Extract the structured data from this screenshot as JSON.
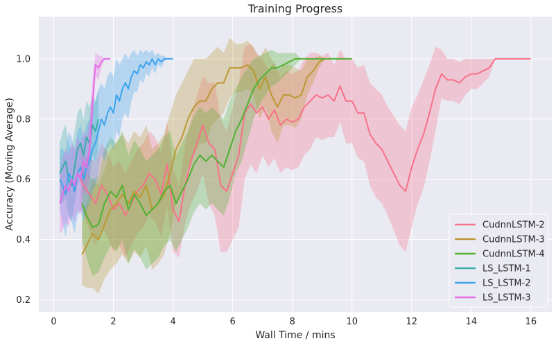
{
  "chart_data": {
    "type": "line",
    "title": "Training Progress",
    "xlabel": "Wall Time / mins",
    "ylabel": "Accuracy (Moving Average)",
    "xlim": [
      -0.5,
      16.7
    ],
    "ylim": [
      0.16,
      1.14
    ],
    "xticks": [
      0,
      2,
      4,
      6,
      8,
      10,
      12,
      14,
      16
    ],
    "yticks": [
      0.2,
      0.4,
      0.6,
      0.8,
      1.0
    ],
    "xtick_labels": [
      "0",
      "2",
      "4",
      "6",
      "8",
      "10",
      "12",
      "14",
      "16"
    ],
    "ytick_labels": [
      "0.2",
      "0.4",
      "0.6",
      "0.8",
      "1.0"
    ],
    "grid": true,
    "legend_position": "bottom-right",
    "series": [
      {
        "name": "CudnnLSTM-2",
        "color": "#f77189",
        "x": [
          0.9,
          1.0,
          1.2,
          1.4,
          1.6,
          1.8,
          2.0,
          2.2,
          2.4,
          2.6,
          2.8,
          3.0,
          3.2,
          3.4,
          3.6,
          3.8,
          4.0,
          4.2,
          4.4,
          4.6,
          4.8,
          5.0,
          5.2,
          5.4,
          5.6,
          5.8,
          6.0,
          6.2,
          6.4,
          6.6,
          6.8,
          7.0,
          7.2,
          7.4,
          7.6,
          7.8,
          8.0,
          8.2,
          8.4,
          8.6,
          8.8,
          9.0,
          9.2,
          9.4,
          9.6,
          9.8,
          10.0,
          10.2,
          10.4,
          10.6,
          10.8,
          11.0,
          11.2,
          11.4,
          11.6,
          11.8,
          12.0,
          12.2,
          12.4,
          12.6,
          12.8,
          13.0,
          13.2,
          13.4,
          13.6,
          13.8,
          14.0,
          14.2,
          14.4,
          14.6,
          14.8,
          15.0,
          15.5,
          16.0
        ],
        "y": [
          0.6,
          0.58,
          0.55,
          0.52,
          0.58,
          0.55,
          0.5,
          0.52,
          0.48,
          0.52,
          0.56,
          0.58,
          0.62,
          0.6,
          0.55,
          0.65,
          0.5,
          0.46,
          0.58,
          0.66,
          0.72,
          0.78,
          0.72,
          0.7,
          0.58,
          0.56,
          0.62,
          0.68,
          0.82,
          0.85,
          0.82,
          0.84,
          0.8,
          0.83,
          0.78,
          0.8,
          0.79,
          0.8,
          0.84,
          0.86,
          0.88,
          0.87,
          0.88,
          0.86,
          0.91,
          0.86,
          0.86,
          0.82,
          0.82,
          0.75,
          0.72,
          0.7,
          0.66,
          0.62,
          0.58,
          0.56,
          0.64,
          0.7,
          0.75,
          0.82,
          0.9,
          0.95,
          0.93,
          0.93,
          0.92,
          0.94,
          0.95,
          0.95,
          0.96,
          0.97,
          1.0,
          1.0,
          1.0,
          1.0
        ],
        "spread": [
          0.1,
          0.1,
          0.12,
          0.14,
          0.14,
          0.14,
          0.14,
          0.14,
          0.14,
          0.14,
          0.14,
          0.14,
          0.14,
          0.14,
          0.14,
          0.14,
          0.14,
          0.12,
          0.13,
          0.14,
          0.16,
          0.16,
          0.2,
          0.22,
          0.22,
          0.2,
          0.22,
          0.24,
          0.22,
          0.2,
          0.2,
          0.16,
          0.16,
          0.16,
          0.16,
          0.16,
          0.16,
          0.16,
          0.16,
          0.16,
          0.14,
          0.14,
          0.14,
          0.12,
          0.12,
          0.14,
          0.14,
          0.15,
          0.16,
          0.17,
          0.18,
          0.18,
          0.18,
          0.19,
          0.2,
          0.2,
          0.2,
          0.18,
          0.18,
          0.16,
          0.14,
          0.08,
          0.07,
          0.07,
          0.07,
          0.06,
          0.05,
          0.05,
          0.04,
          0.03,
          0.0,
          0.0,
          0.0,
          0.0
        ]
      },
      {
        "name": "CudnnLSTM-3",
        "color": "#bb9832",
        "x": [
          0.95,
          1.1,
          1.3,
          1.5,
          1.7,
          1.9,
          2.1,
          2.3,
          2.5,
          2.7,
          2.9,
          3.1,
          3.3,
          3.5,
          3.7,
          3.9,
          4.1,
          4.3,
          4.5,
          4.7,
          4.9,
          5.1,
          5.3,
          5.5,
          5.7,
          5.9,
          6.1,
          6.3,
          6.5,
          6.7,
          6.9,
          7.1,
          7.3,
          7.5,
          7.7,
          7.9,
          8.1,
          8.3,
          8.5,
          8.7,
          8.9,
          9.1
        ],
        "y": [
          0.35,
          0.38,
          0.42,
          0.4,
          0.45,
          0.5,
          0.52,
          0.55,
          0.52,
          0.56,
          0.54,
          0.58,
          0.5,
          0.52,
          0.55,
          0.62,
          0.7,
          0.74,
          0.8,
          0.84,
          0.86,
          0.86,
          0.9,
          0.92,
          0.92,
          0.97,
          0.97,
          0.97,
          0.98,
          0.96,
          0.9,
          0.94,
          0.88,
          0.84,
          0.88,
          0.88,
          0.87,
          0.88,
          0.94,
          0.96,
          0.99,
          1.0
        ],
        "spread": [
          0.1,
          0.14,
          0.18,
          0.18,
          0.18,
          0.2,
          0.2,
          0.2,
          0.2,
          0.2,
          0.2,
          0.2,
          0.2,
          0.2,
          0.2,
          0.2,
          0.18,
          0.18,
          0.16,
          0.16,
          0.14,
          0.14,
          0.12,
          0.12,
          0.1,
          0.1,
          0.08,
          0.08,
          0.08,
          0.08,
          0.1,
          0.1,
          0.12,
          0.12,
          0.1,
          0.1,
          0.1,
          0.08,
          0.06,
          0.04,
          0.02,
          0.0
        ]
      },
      {
        "name": "CudnnLSTM-4",
        "color": "#50b131",
        "x": [
          0.95,
          1.1,
          1.3,
          1.5,
          1.7,
          1.9,
          2.1,
          2.3,
          2.5,
          2.7,
          2.9,
          3.1,
          3.3,
          3.5,
          3.7,
          3.9,
          4.1,
          4.3,
          4.5,
          4.7,
          4.9,
          5.1,
          5.3,
          5.5,
          5.7,
          5.9,
          6.1,
          6.3,
          6.5,
          6.7,
          6.9,
          7.1,
          7.3,
          7.5,
          7.7,
          7.9,
          8.1,
          8.3,
          8.5,
          8.7,
          8.9,
          9.1,
          9.5,
          10.0
        ],
        "y": [
          0.52,
          0.48,
          0.44,
          0.45,
          0.52,
          0.56,
          0.54,
          0.58,
          0.5,
          0.55,
          0.52,
          0.48,
          0.5,
          0.52,
          0.56,
          0.58,
          0.52,
          0.56,
          0.6,
          0.65,
          0.68,
          0.66,
          0.68,
          0.66,
          0.64,
          0.7,
          0.76,
          0.8,
          0.85,
          0.9,
          0.93,
          0.95,
          0.97,
          0.97,
          0.98,
          0.99,
          1.0,
          1.0,
          1.0,
          1.0,
          1.0,
          1.0,
          1.0,
          1.0
        ],
        "spread": [
          0.12,
          0.14,
          0.16,
          0.16,
          0.18,
          0.18,
          0.18,
          0.18,
          0.18,
          0.18,
          0.18,
          0.18,
          0.18,
          0.18,
          0.18,
          0.18,
          0.16,
          0.16,
          0.16,
          0.16,
          0.16,
          0.16,
          0.16,
          0.16,
          0.16,
          0.16,
          0.14,
          0.14,
          0.12,
          0.1,
          0.08,
          0.07,
          0.06,
          0.05,
          0.04,
          0.03,
          0.02,
          0.0,
          0.0,
          0.0,
          0.0,
          0.0,
          0.0,
          0.0
        ]
      },
      {
        "name": "LS_LSTM-1",
        "color": "#36ada4",
        "x": [
          0.2,
          0.3,
          0.4,
          0.5,
          0.6,
          0.7,
          0.8,
          0.9,
          1.0,
          1.1,
          1.2,
          1.3,
          1.4,
          1.5
        ],
        "y": [
          0.62,
          0.64,
          0.66,
          0.6,
          0.58,
          0.64,
          0.7,
          0.72,
          0.68,
          0.74,
          0.72,
          0.78,
          0.76,
          0.8
        ],
        "spread": [
          0.1,
          0.12,
          0.12,
          0.12,
          0.12,
          0.12,
          0.12,
          0.12,
          0.12,
          0.12,
          0.12,
          0.1,
          0.1,
          0.1
        ]
      },
      {
        "name": "LS_LSTM-2",
        "color": "#3ba3ec",
        "x": [
          0.2,
          0.3,
          0.4,
          0.5,
          0.6,
          0.7,
          0.8,
          0.9,
          1.0,
          1.1,
          1.2,
          1.3,
          1.4,
          1.5,
          1.6,
          1.7,
          1.8,
          1.9,
          2.0,
          2.1,
          2.2,
          2.3,
          2.4,
          2.5,
          2.6,
          2.7,
          2.8,
          2.9,
          3.0,
          3.1,
          3.2,
          3.3,
          3.4,
          3.5,
          3.6,
          3.7,
          3.8,
          3.9,
          4.0
        ],
        "y": [
          0.6,
          0.58,
          0.55,
          0.62,
          0.6,
          0.56,
          0.62,
          0.64,
          0.6,
          0.64,
          0.66,
          0.7,
          0.72,
          0.76,
          0.8,
          0.78,
          0.82,
          0.84,
          0.82,
          0.88,
          0.86,
          0.9,
          0.92,
          0.9,
          0.94,
          0.96,
          0.95,
          0.98,
          0.97,
          0.99,
          0.98,
          1.0,
          0.98,
          1.0,
          0.99,
          1.0,
          1.0,
          1.0,
          1.0
        ],
        "spread": [
          0.1,
          0.12,
          0.14,
          0.14,
          0.14,
          0.14,
          0.14,
          0.14,
          0.14,
          0.14,
          0.14,
          0.14,
          0.14,
          0.14,
          0.12,
          0.12,
          0.12,
          0.12,
          0.12,
          0.12,
          0.12,
          0.1,
          0.1,
          0.1,
          0.08,
          0.07,
          0.06,
          0.05,
          0.05,
          0.04,
          0.04,
          0.03,
          0.03,
          0.02,
          0.02,
          0.01,
          0.0,
          0.0,
          0.0
        ]
      },
      {
        "name": "LS_LSTM-3",
        "color": "#e66be4",
        "x": [
          0.2,
          0.3,
          0.4,
          0.5,
          0.6,
          0.7,
          0.8,
          0.9,
          1.0,
          1.1,
          1.2,
          1.3,
          1.4,
          1.5,
          1.6,
          1.7,
          1.8,
          1.9
        ],
        "y": [
          0.52,
          0.55,
          0.58,
          0.56,
          0.6,
          0.58,
          0.62,
          0.6,
          0.66,
          0.64,
          0.7,
          0.85,
          0.98,
          0.97,
          0.99,
          1.0,
          1.0,
          1.0
        ],
        "spread": [
          0.1,
          0.12,
          0.12,
          0.12,
          0.12,
          0.12,
          0.12,
          0.12,
          0.1,
          0.1,
          0.1,
          0.08,
          0.04,
          0.04,
          0.02,
          0.0,
          0.0,
          0.0
        ]
      }
    ]
  }
}
